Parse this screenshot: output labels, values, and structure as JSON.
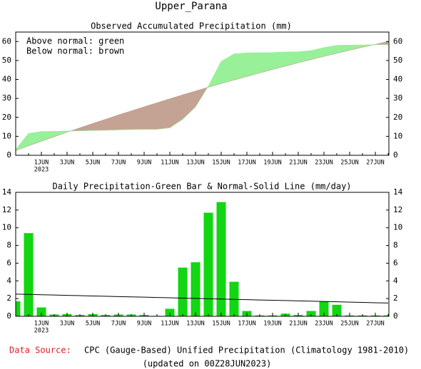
{
  "title": "Upper_Parana",
  "chart_data": [
    {
      "type": "area_between",
      "title": "Observed Accumulated Precipitation (mm)",
      "annotations": [
        "Above normal: green",
        "Below normal: brown"
      ],
      "categories": [
        null,
        null,
        "1JUN",
        null,
        "3JUN",
        null,
        "5JUN",
        null,
        "7JUN",
        null,
        "9JUN",
        null,
        "11JUN",
        null,
        "13JUN",
        null,
        "15JUN",
        null,
        "17JUN",
        null,
        "19JUN",
        null,
        "21JUN",
        null,
        "23JUN",
        null,
        "25JUN",
        null,
        "27JUN",
        null
      ],
      "year_label": "2023",
      "above_color": "#98f098",
      "below_color": "#c4a394",
      "series": [
        {
          "values": [
            3,
            11.5,
            12.5,
            12.6,
            12.8,
            12.9,
            13.1,
            13.2,
            13.4,
            13.6,
            13.7,
            13.7,
            14.5,
            19,
            25.5,
            36.5,
            49.5,
            53.5,
            54,
            54.1,
            54.2,
            54.5,
            54.6,
            55.2,
            56.8,
            58,
            58.1,
            58.2,
            58.3,
            58.4
          ]
        },
        {
          "values": [
            2.5,
            5.0,
            7.4,
            9.8,
            12.2,
            14.5,
            16.8,
            19.0,
            21.3,
            23.4,
            25.6,
            27.7,
            29.8,
            31.9,
            33.9,
            35.9,
            37.8,
            39.7,
            41.6,
            43.4,
            45.3,
            47.0,
            48.8,
            50.5,
            52.2,
            53.8,
            55.4,
            57.0,
            58.5,
            60.0
          ]
        }
      ],
      "ylim": [
        0,
        65
      ],
      "yticks": [
        0,
        10,
        20,
        30,
        40,
        50,
        60
      ]
    },
    {
      "type": "bar",
      "title": "Daily Precipitation-Green Bar & Normal-Solid Line (mm/day)",
      "categories": [
        null,
        null,
        "1JUN",
        null,
        "3JUN",
        null,
        "5JUN",
        null,
        "7JUN",
        null,
        "9JUN",
        null,
        "11JUN",
        null,
        "13JUN",
        null,
        "15JUN",
        null,
        "17JUN",
        null,
        "19JUN",
        null,
        "21JUN",
        null,
        "23JUN",
        null,
        "25JUN",
        null,
        "27JUN",
        null
      ],
      "year_label": "2023",
      "series": [
        {
          "type": "bar",
          "color": "#11d611",
          "values": [
            1.7,
            9.4,
            1.0,
            0.2,
            0.25,
            0.15,
            0.25,
            0.15,
            0.2,
            0.2,
            0.15,
            0.05,
            0.85,
            5.5,
            6.1,
            11.7,
            12.9,
            3.9,
            0.6,
            0.1,
            0.1,
            0.3,
            0.15,
            0.6,
            1.7,
            1.3,
            0.1,
            0.1,
            0.1,
            0.1
          ]
        },
        {
          "type": "line",
          "color": "#000000",
          "values": [
            2.5,
            2.47,
            2.43,
            2.4,
            2.36,
            2.33,
            2.29,
            2.26,
            2.22,
            2.19,
            2.16,
            2.12,
            2.09,
            2.05,
            2.02,
            1.98,
            1.95,
            1.91,
            1.88,
            1.84,
            1.81,
            1.78,
            1.74,
            1.71,
            1.67,
            1.64,
            1.6,
            1.57,
            1.53,
            1.5
          ]
        }
      ],
      "ylim": [
        0,
        14
      ],
      "yticks": [
        0,
        2,
        4,
        6,
        8,
        10,
        12,
        14
      ]
    }
  ],
  "footer": {
    "source_label": "Data Source:",
    "source": "CPC (Gauge-Based) Unified Precipitation (Climatology 1981-2010)",
    "updated": "(updated on 00Z28JUN2023)"
  }
}
